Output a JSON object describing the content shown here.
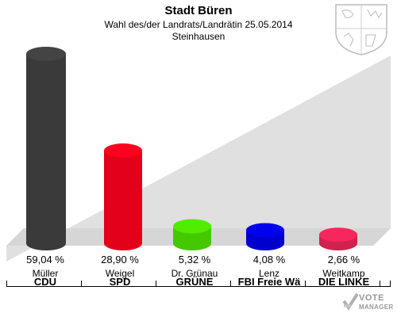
{
  "header": {
    "title": "Stadt Büren",
    "subtitle": "Wahl des/der Landrats/Landrätin 25.05.2014",
    "subtitle2": "Steinhausen"
  },
  "logo": {
    "line1": "VOTE",
    "line2": "MANAGER",
    "icon": "vote-check-icon"
  },
  "crest": {
    "icon": "coat-of-arms-icon"
  },
  "chart_data": {
    "type": "bar",
    "categories": [
      "CDU",
      "SPD",
      "GRÜNE",
      "FBI Freie Wä",
      "DIE LINKE"
    ],
    "candidates": [
      "Müller",
      "Weigel",
      "Dr. Grünau",
      "Lenz",
      "Weitkamp"
    ],
    "values": [
      59.04,
      28.9,
      5.32,
      4.08,
      2.66
    ],
    "labels": [
      "59,04 %",
      "28,90 %",
      "5,32 %",
      "4,08 %",
      "2,66 %"
    ],
    "colors": [
      "#3a3a3a",
      "#e2001a",
      "#46c800",
      "#0000cc",
      "#d0214f"
    ],
    "ylim": [
      0,
      59.04
    ],
    "grid": false,
    "legend": "none"
  }
}
